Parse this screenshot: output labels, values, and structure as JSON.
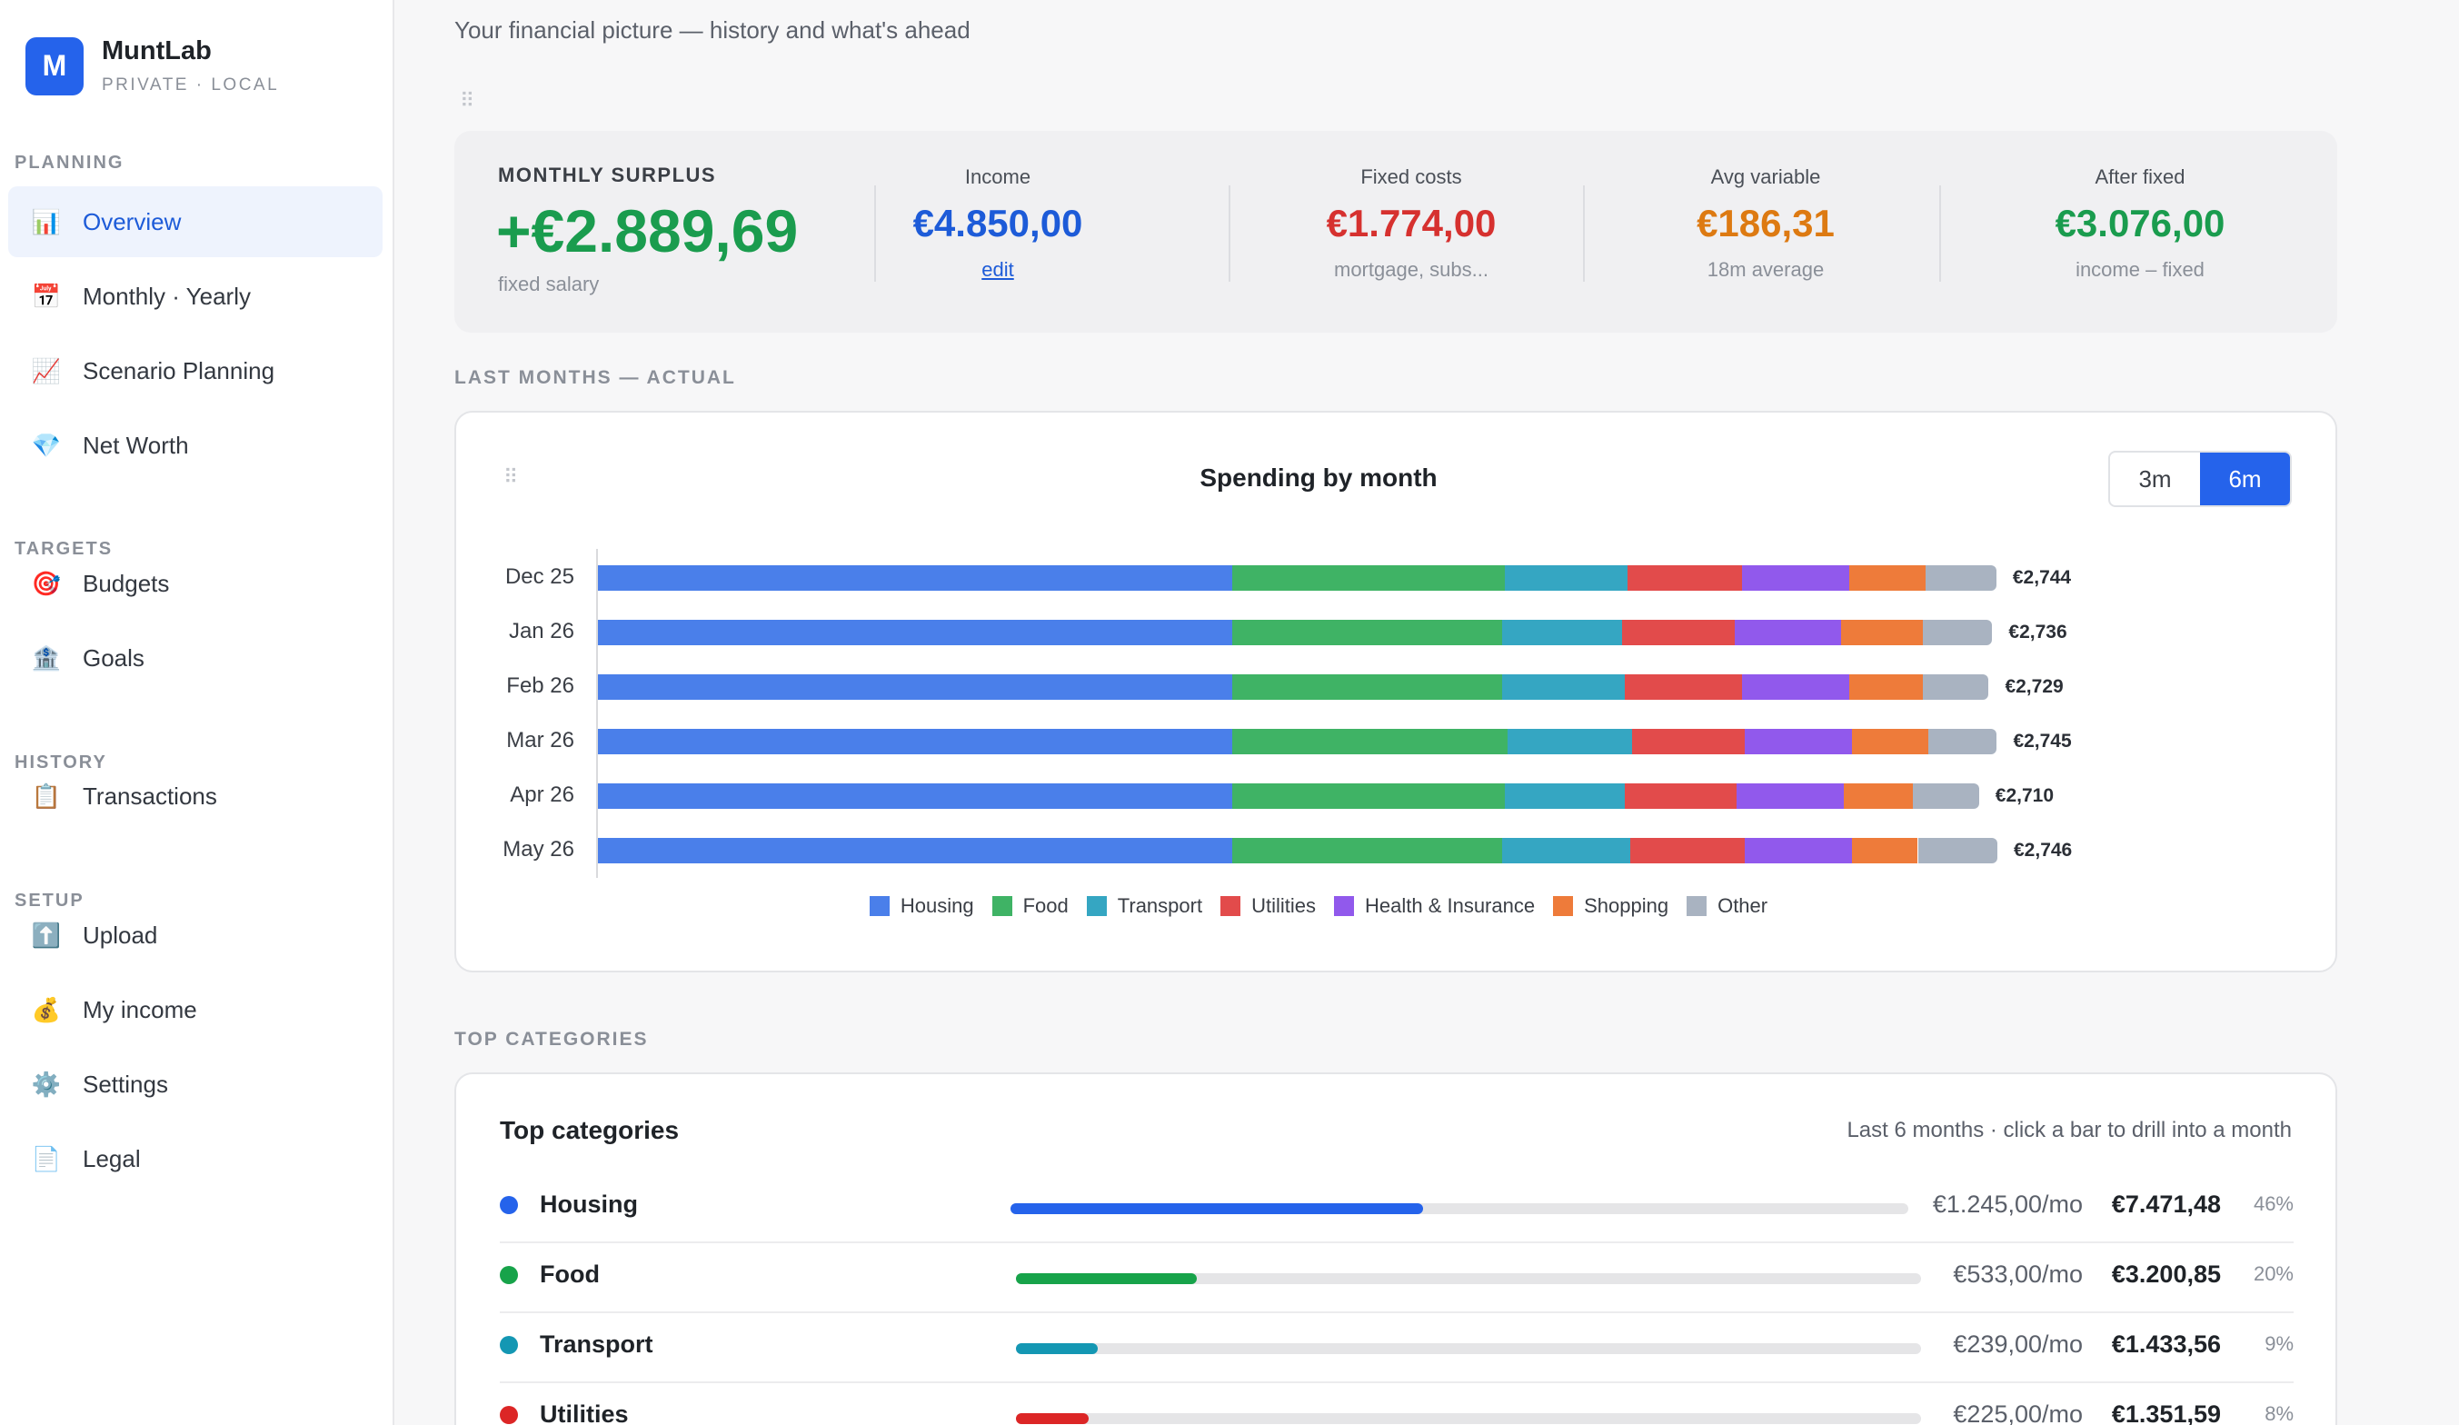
{
  "brand": {
    "logo_letter": "M",
    "name": "MuntLab",
    "subtitle": "PRIVATE · LOCAL"
  },
  "sidebar": {
    "sections": [
      {
        "title": "PLANNING",
        "items": [
          {
            "icon": "📊",
            "icon_name": "chart-icon",
            "label": "Overview",
            "active": true
          },
          {
            "icon": "📅",
            "icon_name": "calendar-icon",
            "label": "Monthly · Yearly"
          },
          {
            "icon": "📈",
            "icon_name": "trend-icon",
            "label": "Scenario Planning"
          },
          {
            "icon": "💎",
            "icon_name": "gem-icon",
            "label": "Net Worth"
          }
        ]
      },
      {
        "title": "TARGETS",
        "items": [
          {
            "icon": "🎯",
            "icon_name": "target-icon",
            "label": "Budgets"
          },
          {
            "icon": "🏦",
            "icon_name": "bank-icon",
            "label": "Goals"
          }
        ]
      },
      {
        "title": "HISTORY",
        "items": [
          {
            "icon": "📋",
            "icon_name": "clipboard-icon",
            "label": "Transactions"
          }
        ]
      },
      {
        "title": "SETUP",
        "items": [
          {
            "icon": "⬆️",
            "icon_name": "upload-icon",
            "label": "Upload"
          },
          {
            "icon": "💰",
            "icon_name": "money-bag-icon",
            "label": "My income"
          },
          {
            "icon": "⚙️",
            "icon_name": "gear-icon",
            "label": "Settings"
          },
          {
            "icon": "📄",
            "icon_name": "document-icon",
            "label": "Legal"
          }
        ]
      }
    ]
  },
  "page": {
    "subtitle": "Your financial picture — history and what's ahead"
  },
  "summary": {
    "surplus_label": "MONTHLY SURPLUS",
    "surplus_value": "+€2.889,69",
    "surplus_sub": "fixed salary",
    "stats": [
      {
        "label": "Income",
        "value": "€4.850,00",
        "sub": "edit",
        "color": "#1d5bd8",
        "link": true
      },
      {
        "label": "Fixed costs",
        "value": "€1.774,00",
        "sub": "mortgage, subs...",
        "color": "#d6312f"
      },
      {
        "label": "Avg variable",
        "value": "€186,31",
        "sub": "18m average",
        "color": "#dd7a12"
      },
      {
        "label": "After fixed",
        "value": "€3.076,00",
        "sub": "income – fixed",
        "color": "#1a9c4e"
      }
    ]
  },
  "sections": {
    "last_months": "LAST MONTHS — ACTUAL",
    "top_categories": "TOP CATEGORIES"
  },
  "chart_data": {
    "type": "bar",
    "orientation": "horizontal",
    "stacked": true,
    "title": "Spending by month",
    "range_toggle": [
      "3m",
      "6m"
    ],
    "range_selected": "6m",
    "categories": [
      "Dec 25",
      "Jan 26",
      "Feb 26",
      "Mar 26",
      "Apr 26",
      "May 26"
    ],
    "totals_labels": [
      "€2,744",
      "€2,736",
      "€2,729",
      "€2,745",
      "€2,710",
      "€2,746"
    ],
    "totals": [
      2744,
      2736,
      2729,
      2745,
      2710,
      2746
    ],
    "legend_position": "bottom",
    "series": [
      {
        "name": "Housing",
        "color": "#4a7fea",
        "values": [
          1245,
          1245,
          1245,
          1245,
          1245,
          1245
        ]
      },
      {
        "name": "Food",
        "color": "#3fb365",
        "values": [
          535,
          530,
          530,
          540,
          535,
          530
        ]
      },
      {
        "name": "Transport",
        "color": "#35a6c2",
        "values": [
          240,
          235,
          240,
          245,
          235,
          250
        ]
      },
      {
        "name": "Utilities",
        "color": "#e24b4b",
        "values": [
          225,
          220,
          230,
          220,
          220,
          225
        ]
      },
      {
        "name": "Health & Insurance",
        "color": "#9159ec",
        "values": [
          210,
          210,
          210,
          210,
          210,
          210
        ]
      },
      {
        "name": "Shopping",
        "color": "#ee7b3a",
        "values": [
          150,
          160,
          145,
          150,
          135,
          130
        ]
      },
      {
        "name": "Other",
        "color": "#a9b3c1",
        "values": [
          139,
          136,
          129,
          135,
          130,
          156
        ]
      }
    ]
  },
  "top_categories": {
    "title": "Top categories",
    "note": "Last 6 months · click a bar to drill into a month",
    "items": [
      {
        "name": "Housing",
        "color": "#2563eb",
        "monthly": "€1.245,00/mo",
        "total": "€7.471,48",
        "pct": "46%",
        "share": 0.46
      },
      {
        "name": "Food",
        "color": "#17a34a",
        "monthly": "€533,00/mo",
        "total": "€3.200,85",
        "pct": "20%",
        "share": 0.2
      },
      {
        "name": "Transport",
        "color": "#1497b3",
        "monthly": "€239,00/mo",
        "total": "€1.433,56",
        "pct": "9%",
        "share": 0.09
      },
      {
        "name": "Utilities",
        "color": "#dc2626",
        "monthly": "€225,00/mo",
        "total": "€1.351,59",
        "pct": "8%",
        "share": 0.08
      }
    ]
  }
}
